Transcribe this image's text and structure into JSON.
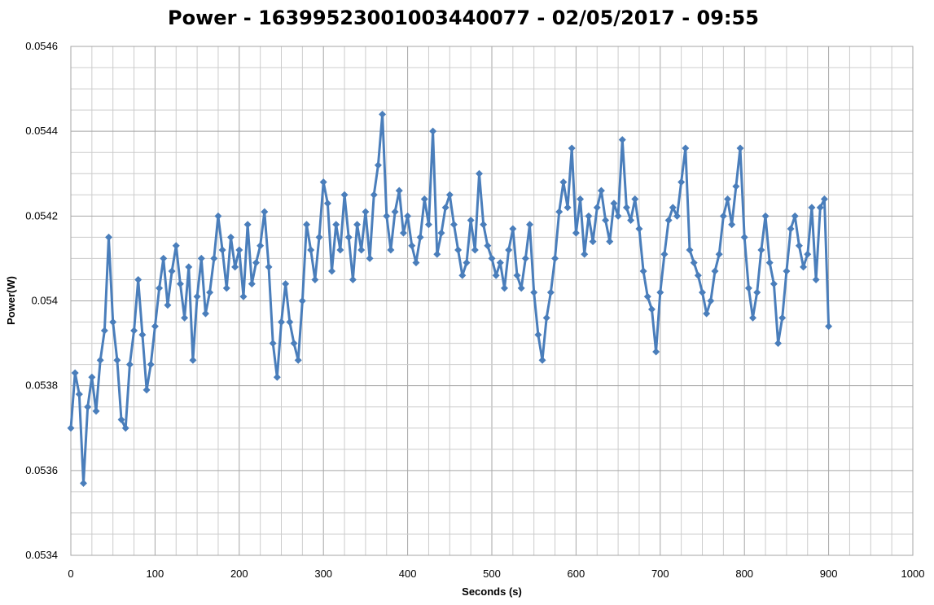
{
  "chart_data": {
    "type": "line",
    "title": "Power - 1639952300100344007​7 - 02/05/2017 - 09:55",
    "xlabel": "Seconds (s)",
    "ylabel": "Power(W)",
    "xlim": [
      0,
      1000
    ],
    "ylim": [
      0.0534,
      0.0546
    ],
    "x_ticks": [
      "0",
      "100",
      "200",
      "300",
      "400",
      "500",
      "600",
      "700",
      "800",
      "900",
      "1000"
    ],
    "y_ticks": [
      "0.0534",
      "0.0536",
      "0.0538",
      "0.054",
      "0.0542",
      "0.0544",
      "0.0546"
    ],
    "grid": true,
    "marker": "diamond",
    "color": "#4a7ebb",
    "series": [
      {
        "x": [
          0,
          5,
          10,
          15,
          20,
          25,
          30,
          35,
          40,
          45,
          50,
          55,
          60,
          65,
          70,
          75,
          80,
          85,
          90,
          95,
          100,
          105,
          110,
          115,
          120,
          125,
          130,
          135,
          140,
          145,
          150,
          155,
          160,
          165,
          170,
          175,
          180,
          185,
          190,
          195,
          200,
          205,
          210,
          215,
          220,
          225,
          230,
          235,
          240,
          245,
          250,
          255,
          260,
          265,
          270,
          275,
          280,
          285,
          290,
          295,
          300,
          305,
          310,
          315,
          320,
          325,
          330,
          335,
          340,
          345,
          350,
          355,
          360,
          365,
          370,
          375,
          380,
          385,
          390,
          395,
          400,
          405,
          410,
          415,
          420,
          425,
          430,
          435,
          440,
          445,
          450,
          455,
          460,
          465,
          470,
          475,
          480,
          485,
          490,
          495,
          500,
          505,
          510,
          515,
          520,
          525,
          530,
          535,
          540,
          545,
          550,
          555,
          560,
          565,
          570,
          575,
          580,
          585,
          590,
          595,
          600,
          605,
          610,
          615,
          620,
          625,
          630,
          635,
          640,
          645,
          650,
          655,
          660,
          665,
          670,
          675,
          680,
          685,
          690,
          695,
          700,
          705,
          710,
          715,
          720,
          725,
          730,
          735,
          740,
          745,
          750,
          755,
          760,
          765,
          770,
          775,
          780,
          785,
          790,
          795,
          800,
          805,
          810,
          815,
          820,
          825,
          830,
          835,
          840,
          845,
          850,
          855,
          860,
          865,
          870,
          875,
          880,
          885,
          890,
          895,
          900
        ],
        "y": [
          0.0537,
          0.05383,
          0.05378,
          0.05357,
          0.05375,
          0.05382,
          0.05374,
          0.05386,
          0.05393,
          0.05415,
          0.05395,
          0.05386,
          0.05372,
          0.0537,
          0.05385,
          0.05393,
          0.05405,
          0.05392,
          0.05379,
          0.05385,
          0.05394,
          0.05403,
          0.0541,
          0.05399,
          0.05407,
          0.05413,
          0.05404,
          0.05396,
          0.05408,
          0.05386,
          0.05401,
          0.0541,
          0.05397,
          0.05402,
          0.0541,
          0.0542,
          0.05412,
          0.05403,
          0.05415,
          0.05408,
          0.05412,
          0.05401,
          0.05418,
          0.05404,
          0.05409,
          0.05413,
          0.05421,
          0.05408,
          0.0539,
          0.05382,
          0.05395,
          0.05404,
          0.05395,
          0.0539,
          0.05386,
          0.054,
          0.05418,
          0.05412,
          0.05405,
          0.05415,
          0.05428,
          0.05423,
          0.05407,
          0.05418,
          0.05412,
          0.05425,
          0.05415,
          0.05405,
          0.05418,
          0.05412,
          0.05421,
          0.0541,
          0.05425,
          0.05432,
          0.05444,
          0.0542,
          0.05412,
          0.05421,
          0.05426,
          0.05416,
          0.0542,
          0.05413,
          0.05409,
          0.05415,
          0.05424,
          0.05418,
          0.0544,
          0.05411,
          0.05416,
          0.05422,
          0.05425,
          0.05418,
          0.05412,
          0.05406,
          0.05409,
          0.05419,
          0.05412,
          0.0543,
          0.05418,
          0.05413,
          0.0541,
          0.05406,
          0.05409,
          0.05403,
          0.05412,
          0.05417,
          0.05406,
          0.05403,
          0.0541,
          0.05418,
          0.05402,
          0.05392,
          0.05386,
          0.05396,
          0.05402,
          0.0541,
          0.05421,
          0.05428,
          0.05422,
          0.05436,
          0.05416,
          0.05424,
          0.05411,
          0.0542,
          0.05414,
          0.05422,
          0.05426,
          0.05419,
          0.05414,
          0.05423,
          0.0542,
          0.05438,
          0.05422,
          0.05419,
          0.05424,
          0.05417,
          0.05407,
          0.05401,
          0.05398,
          0.05388,
          0.05402,
          0.05411,
          0.05419,
          0.05422,
          0.0542,
          0.05428,
          0.05436,
          0.05412,
          0.05409,
          0.05406,
          0.05402,
          0.05397,
          0.054,
          0.05407,
          0.05411,
          0.0542,
          0.05424,
          0.05418,
          0.05427,
          0.05436,
          0.05415,
          0.05403,
          0.05396,
          0.05402,
          0.05412,
          0.0542,
          0.05409,
          0.05404,
          0.0539,
          0.05396,
          0.05407,
          0.05417,
          0.0542,
          0.05413,
          0.05408,
          0.05411,
          0.05422,
          0.05405,
          0.05422,
          0.05424,
          0.05394
        ]
      }
    ]
  }
}
